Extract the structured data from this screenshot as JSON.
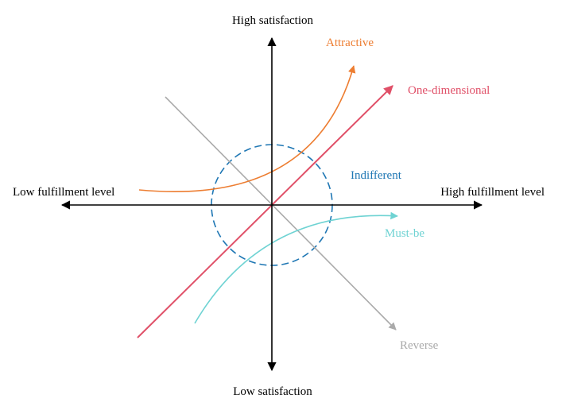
{
  "axes": {
    "y_top": "High satisfaction",
    "y_bottom": "Low satisfaction",
    "x_left": "Low fulfillment level",
    "x_right": "High fulfillment level"
  },
  "curves": {
    "attractive": "Attractive",
    "one_dimensional": "One-dimensional",
    "indifferent": "Indifferent",
    "must_be": "Must-be",
    "reverse": "Reverse"
  },
  "colors": {
    "axis": "#000000",
    "attractive": "#ED7D31",
    "one_dimensional": "#E05068",
    "indifferent": "#1F77B4",
    "must_be": "#6FD3D3",
    "reverse": "#AAAAAA"
  }
}
